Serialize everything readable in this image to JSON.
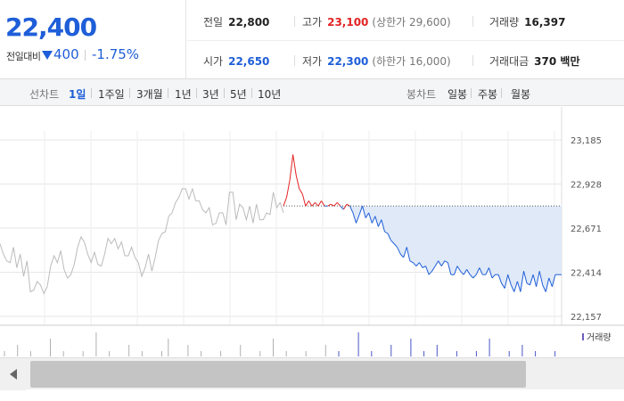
{
  "price": {
    "current": "22,400",
    "change_label": "전일대비",
    "change": "400",
    "change_rate": "-1.75%"
  },
  "stats": {
    "prev_close": {
      "label": "전일",
      "value": "22,800"
    },
    "high": {
      "label": "고가",
      "value": "23,100",
      "sub": "(상한가 29,600)"
    },
    "volume": {
      "label": "거래량",
      "value": "16,397"
    },
    "open": {
      "label": "시가",
      "value": "22,650"
    },
    "low": {
      "label": "저가",
      "value": "22,300",
      "sub": "(하한가 16,000)"
    },
    "amount": {
      "label": "거래대금",
      "value": "370 백만"
    }
  },
  "tabs": {
    "line_label": "선차트",
    "line": [
      "1일",
      "1주일",
      "3개월",
      "1년",
      "3년",
      "5년",
      "10년"
    ],
    "candle_label": "봉차트",
    "candle": [
      "일봉",
      "주봉",
      "월봉"
    ]
  },
  "chart_data": {
    "type": "line",
    "y_ticks": [
      "23,185",
      "22,928",
      "22,671",
      "22,414",
      "22,157"
    ],
    "ylim": [
      22157,
      23185
    ],
    "prev_close": 22800,
    "legend": "거래량",
    "colors": {
      "prev_day": "#bbbbbb",
      "up": "#e22323",
      "down": "#1e5ed8",
      "fill": "#dfe9f7"
    },
    "series": [
      {
        "name": "",
        "values": [
          22580,
          22520,
          22480,
          22470,
          22560,
          22440,
          22520,
          22390,
          22480,
          22300,
          22310,
          22360,
          22340,
          22290,
          22330,
          22450,
          22510,
          22470,
          22540,
          22430,
          22380,
          22400,
          22460,
          22560,
          22620,
          22590,
          22520,
          22470,
          22530,
          22460,
          22450,
          22520,
          22610,
          22580,
          22610,
          22550,
          22590,
          22510,
          22510,
          22560,
          22500,
          22470,
          22390,
          22440,
          22520,
          22420,
          22500,
          22600,
          22640,
          22650,
          22740,
          22760,
          22820,
          22850,
          22900,
          22900,
          22840,
          22900,
          22830,
          22830,
          22780,
          22760,
          22790,
          22690,
          22700,
          22760,
          22760,
          22690,
          22880,
          22880,
          22720,
          22810,
          22790,
          22720,
          22800,
          22700,
          22810,
          22720,
          22720,
          22760,
          22750,
          22880,
          22790,
          22820,
          22760
        ]
      },
      {
        "name": "",
        "values": [
          22800,
          22850,
          22950,
          23100,
          22980,
          22900,
          22870,
          22800,
          22830,
          22800,
          22820,
          22800,
          22830,
          22800,
          22800,
          22810,
          22800,
          22820,
          22800,
          22780,
          22810,
          22800,
          22760,
          22700,
          22750,
          22800,
          22730,
          22760,
          22700,
          22740,
          22680,
          22720,
          22650,
          22640,
          22600,
          22580,
          22560,
          22520,
          22500,
          22560,
          22480,
          22470,
          22450,
          22470,
          22440,
          22450,
          22400,
          22420,
          22450,
          22480,
          22450,
          22480,
          22470,
          22400,
          22400,
          22450,
          22420,
          22400,
          22430,
          22400,
          22380,
          22400,
          22440,
          22400,
          22400,
          22440,
          22380,
          22400,
          22400,
          22350,
          22320,
          22400,
          22340,
          22300,
          22360,
          22300,
          22420,
          22350,
          22340,
          22400,
          22330,
          22420,
          22340,
          22300,
          22380,
          22330,
          22400,
          22400,
          22400
        ]
      }
    ],
    "volume": [
      1,
      0,
      2,
      0,
      1,
      0,
      0,
      3,
      0,
      1,
      0,
      0,
      1,
      0,
      4,
      0,
      1,
      0,
      0,
      2,
      0,
      1,
      0,
      0,
      1,
      3,
      0,
      0,
      2,
      0,
      1,
      0,
      0,
      1,
      0,
      0,
      2,
      0,
      0,
      1,
      0,
      3,
      0,
      1,
      0,
      0,
      1,
      0,
      0,
      2,
      0,
      1,
      0,
      0,
      4,
      0,
      1,
      0,
      0,
      2,
      0,
      0,
      3,
      0,
      1,
      0,
      2,
      0,
      0,
      1,
      0,
      0,
      1,
      0,
      3,
      0,
      0,
      1,
      0,
      2,
      0,
      1,
      0,
      0,
      1
    ]
  }
}
